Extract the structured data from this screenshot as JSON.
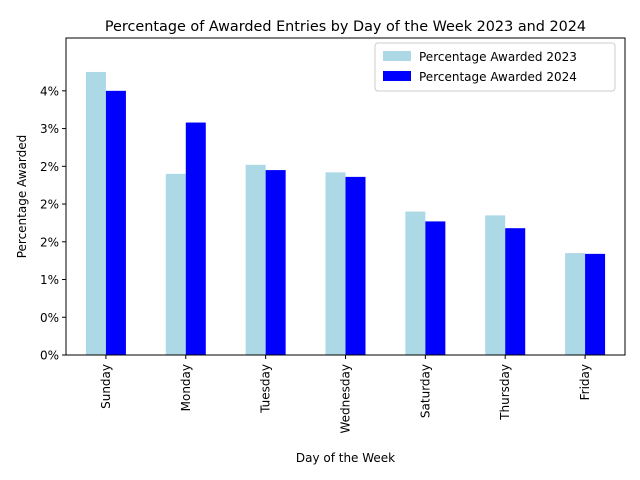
{
  "chart_data": {
    "type": "bar",
    "title": "Percentage of Awarded Entries by Day of the Week 2023 and 2024",
    "xlabel": "Day of the Week",
    "ylabel": "Percentage Awarded",
    "categories": [
      "Sunday",
      "Monday",
      "Tuesday",
      "Wednesday",
      "Saturday",
      "Thursday",
      "Friday"
    ],
    "series": [
      {
        "name": "Percentage Awarded 2023",
        "color": "#add8e6",
        "values": [
          3.75,
          2.4,
          2.52,
          2.42,
          1.9,
          1.85,
          1.35
        ]
      },
      {
        "name": "Percentage Awarded 2024",
        "color": "#0000ff",
        "values": [
          3.5,
          3.08,
          2.45,
          2.36,
          1.77,
          1.68,
          1.34
        ]
      }
    ],
    "ylim": [
      0,
      4.2
    ],
    "yticks": [
      0,
      0.5,
      1.0,
      1.5,
      2.0,
      2.5,
      3.0,
      3.5
    ],
    "ytick_labels": [
      "0%",
      "0%",
      "1%",
      "2%",
      "2%",
      "2%",
      "3%",
      "4%"
    ],
    "legend_position": "top-right",
    "grid": false
  }
}
